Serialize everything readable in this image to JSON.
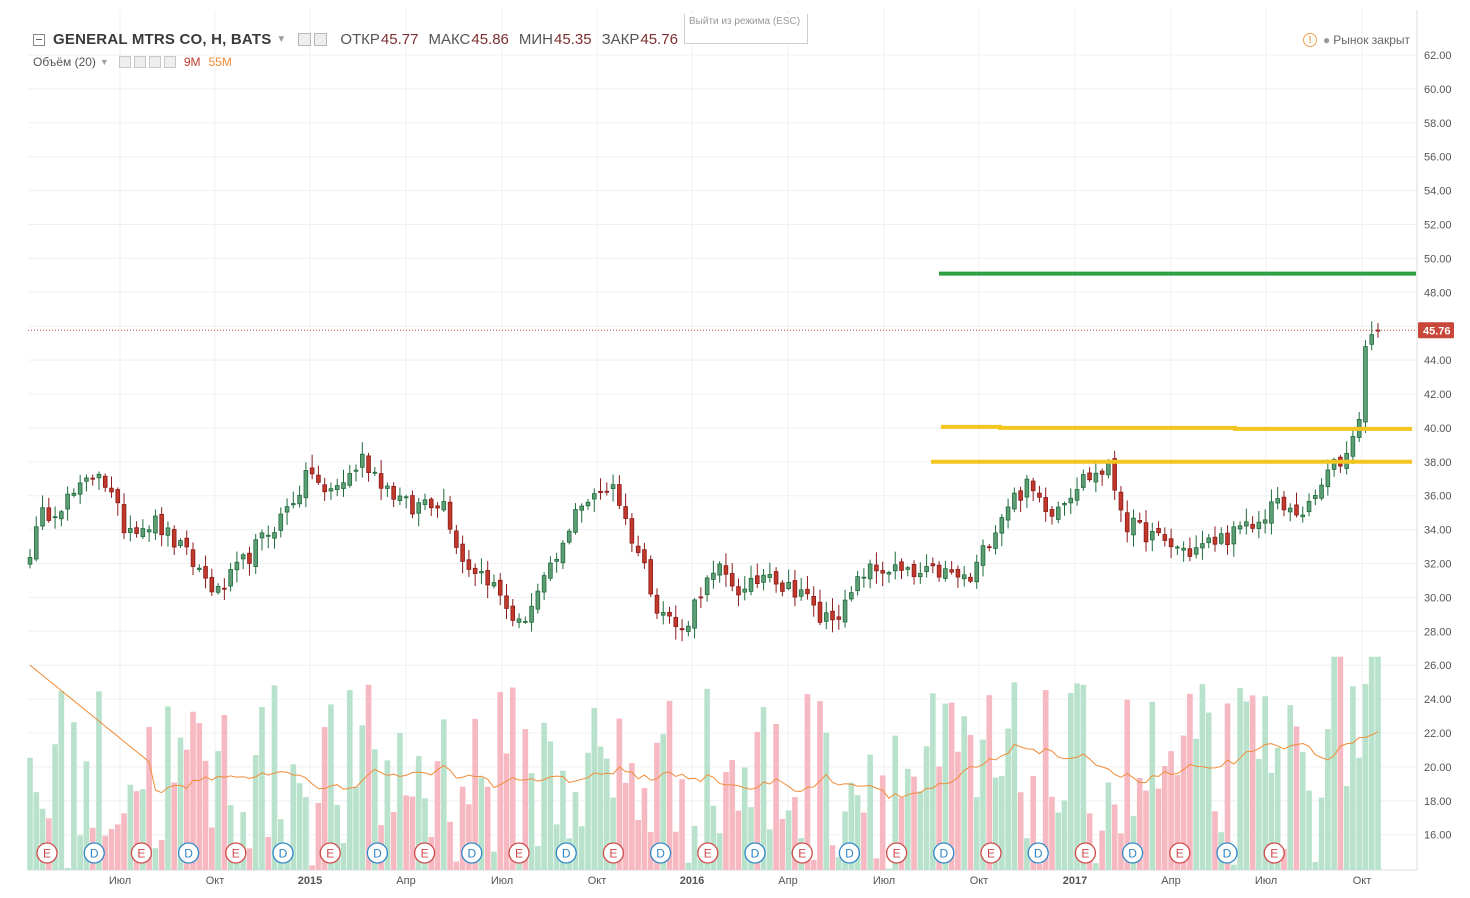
{
  "legend": {
    "symbol": "GENERAL MTRS CO, Н, BATS",
    "open_label": "ОТКР",
    "open": "45.77",
    "high_label": "МАКС",
    "high": "45.86",
    "low_label": "МИН",
    "low": "45.35",
    "close_label": "ЗАКР",
    "close": "45.76"
  },
  "volume_legend": {
    "label": "Объём (20)",
    "vol": "9M",
    "vol_ma": "55M"
  },
  "esc_hint": "Выйти из режима (ESC)",
  "market_status": "Рынок закрыт",
  "colors": {
    "up": "#1e6b3c",
    "up_fill": "#5e9e74",
    "down": "#8b1a1a",
    "down_fill": "#c0392b",
    "vol_up": "#b9e2cd",
    "vol_down": "#f7b9c1",
    "ma": "#f08c38",
    "support": "#f2c61f",
    "target": "#2ea043",
    "price_label": "#c9473a"
  },
  "chart_data": {
    "type": "candlestick",
    "y_axis": {
      "min": 16,
      "max": 62,
      "ticks": [
        "62.00",
        "60.00",
        "58.00",
        "56.00",
        "54.00",
        "52.00",
        "50.00",
        "48.00",
        "46.00",
        "44.00",
        "42.00",
        "40.00",
        "38.00",
        "36.00",
        "34.00",
        "32.00",
        "30.00",
        "28.00",
        "26.00",
        "24.00",
        "22.00",
        "20.00",
        "18.00",
        "16.00"
      ]
    },
    "x_axis": {
      "labels": [
        "Июл",
        "Окт",
        "2015",
        "Апр",
        "Июл",
        "Окт",
        "2016",
        "Апр",
        "Июл",
        "Окт",
        "2017",
        "Апр",
        "Июл",
        "Окт"
      ],
      "bold": [
        "2015",
        "2016",
        "2017"
      ]
    },
    "last_price": "45.76",
    "anchors": [
      [
        0,
        32.8
      ],
      [
        2,
        34.8
      ],
      [
        8,
        36.3
      ],
      [
        11,
        37.6
      ],
      [
        15,
        34.2
      ],
      [
        20,
        34.4
      ],
      [
        25,
        32.5
      ],
      [
        30,
        30.2
      ],
      [
        35,
        32.5
      ],
      [
        40,
        34.7
      ],
      [
        45,
        37.5
      ],
      [
        47,
        36
      ],
      [
        51,
        37.2
      ],
      [
        53,
        38.2
      ],
      [
        57,
        36.5
      ],
      [
        61,
        35.1
      ],
      [
        63,
        35.8
      ],
      [
        66,
        35.6
      ],
      [
        69,
        32.2
      ],
      [
        73,
        31.2
      ],
      [
        78,
        28.3
      ],
      [
        83,
        31.5
      ],
      [
        86,
        33.7
      ],
      [
        87,
        35.5
      ],
      [
        90,
        35.8
      ],
      [
        93,
        36.8
      ],
      [
        95,
        34.5
      ],
      [
        98,
        31.8
      ],
      [
        100,
        29.6
      ],
      [
        104,
        27.9
      ],
      [
        107,
        30.5
      ],
      [
        110,
        31.5
      ],
      [
        114,
        30.2
      ],
      [
        118,
        31.8
      ],
      [
        120,
        30.6
      ],
      [
        123,
        30.5
      ],
      [
        126,
        28.7
      ],
      [
        130,
        29.4
      ],
      [
        133,
        31.5
      ],
      [
        137,
        31.7
      ],
      [
        141,
        31.2
      ],
      [
        145,
        31.5
      ],
      [
        150,
        31
      ],
      [
        153,
        33.5
      ],
      [
        156,
        35.6
      ],
      [
        159,
        36.5
      ],
      [
        163,
        35.2
      ],
      [
        168,
        37
      ],
      [
        172,
        37.6
      ],
      [
        175,
        34.3
      ],
      [
        178,
        33.8
      ],
      [
        181,
        33.2
      ],
      [
        185,
        32.7
      ],
      [
        190,
        33.5
      ],
      [
        193,
        33.9
      ],
      [
        196,
        34.3
      ],
      [
        198,
        35.6
      ],
      [
        201,
        35
      ],
      [
        204,
        35.2
      ],
      [
        207,
        37.3
      ],
      [
        210,
        38.5
      ],
      [
        212,
        40.5
      ],
      [
        213,
        44.8
      ],
      [
        214,
        45.5
      ],
      [
        215,
        45.76
      ]
    ],
    "annotations": {
      "resistance_levels": [
        38.0,
        40.0
      ],
      "target_level": 49.1,
      "events": [
        "E",
        "D",
        "E",
        "D",
        "E",
        "D",
        "E",
        "D",
        "E",
        "D",
        "E",
        "D",
        "E",
        "D",
        "E",
        "D",
        "E",
        "D",
        "E",
        "D",
        "E",
        "D",
        "E",
        "D",
        "E",
        "D",
        "E"
      ]
    }
  }
}
